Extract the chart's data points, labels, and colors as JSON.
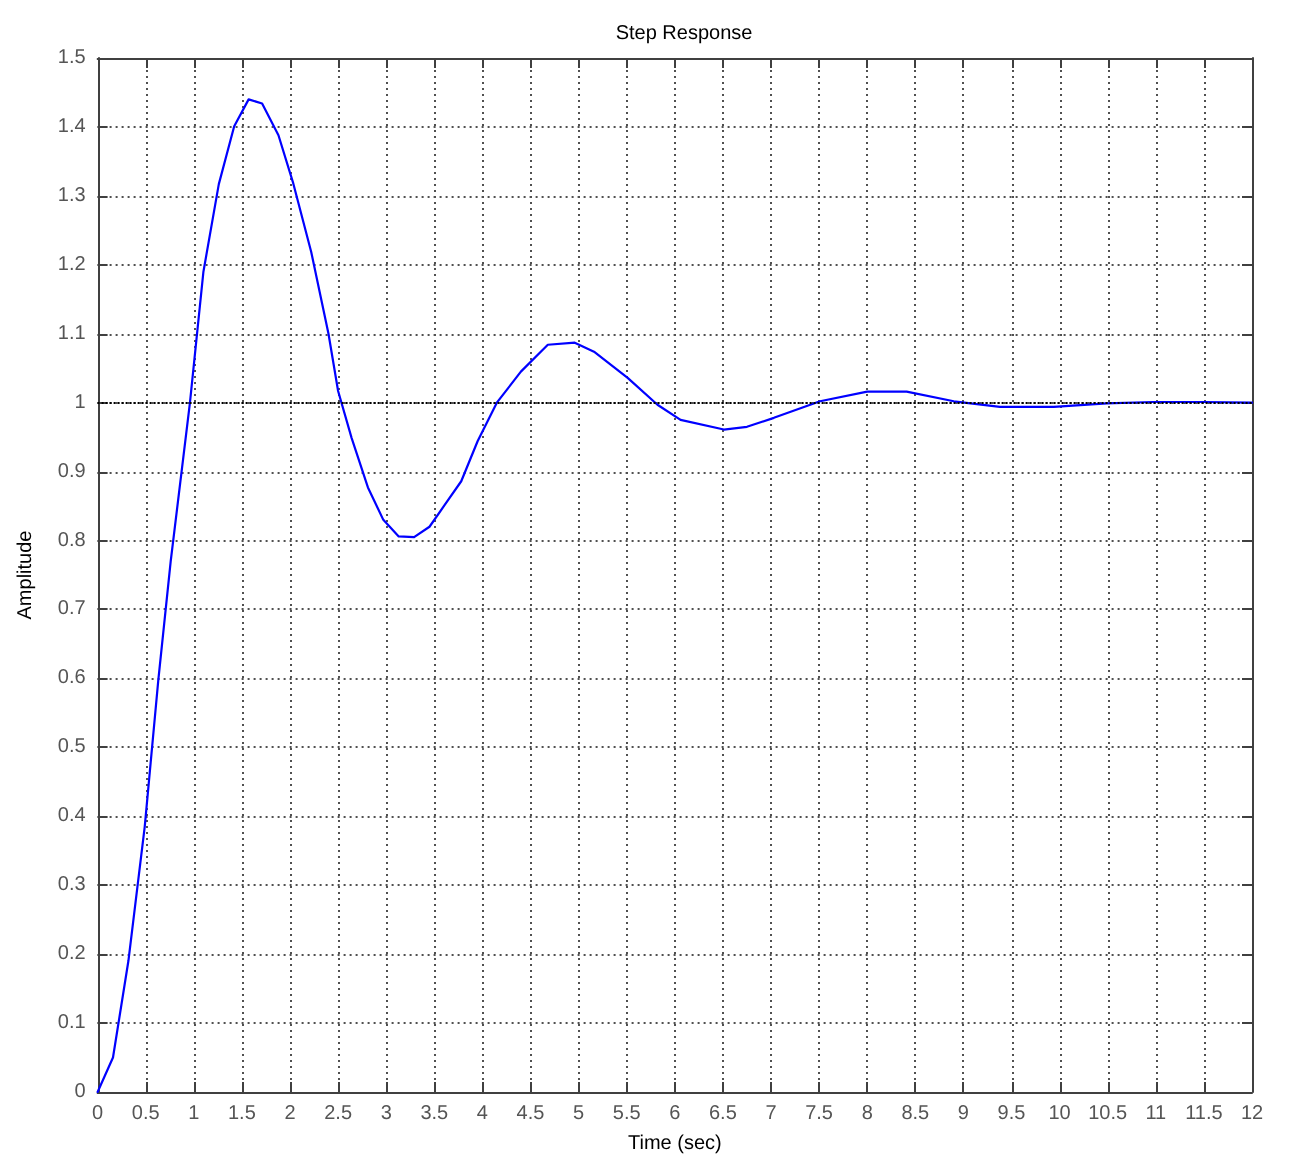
{
  "chart_data": {
    "type": "line",
    "title": "Step Response",
    "xlabel": "Time (sec)",
    "ylabel": "Amplitude",
    "x": [
      0,
      0.16,
      0.32,
      0.49,
      0.63,
      0.76,
      0.96,
      1.1,
      1.26,
      1.42,
      1.57,
      1.71,
      1.88,
      2.03,
      2.22,
      2.4,
      2.5,
      2.64,
      2.81,
      2.97,
      3.13,
      3.29,
      3.45,
      3.61,
      3.78,
      3.95,
      4.15,
      4.4,
      4.68,
      4.96,
      5.16,
      5.51,
      5.82,
      6.06,
      6.51,
      6.75,
      7.03,
      7.51,
      8,
      8.41,
      8.9,
      9.38,
      9.94,
      10.49,
      10.97,
      11.5,
      12
    ],
    "values": [
      0,
      0.05,
      0.19,
      0.385,
      0.596,
      0.77,
      1,
      1.19,
      1.317,
      1.401,
      1.44,
      1.434,
      1.388,
      1.32,
      1.219,
      1.1,
      1.017,
      0.949,
      0.877,
      0.83,
      0.806,
      0.805,
      0.82,
      0.852,
      0.886,
      0.944,
      1,
      1.045,
      1.084,
      1.087,
      1.074,
      1.036,
      0.997,
      0.975,
      0.961,
      0.965,
      0.978,
      1.002,
      1.016,
      1.016,
      1.002,
      0.994,
      0.994,
      0.999,
      1.001,
      1.001,
      1
    ],
    "color": "#0000ff",
    "marker": "none",
    "line_style": "solid",
    "xlim": [
      0,
      12
    ],
    "xticks": [
      0,
      0.5,
      1,
      1.5,
      2,
      2.5,
      3,
      3.5,
      4,
      4.5,
      5,
      5.5,
      6,
      6.5,
      7,
      7.5,
      8,
      8.5,
      9,
      9.5,
      10,
      10.5,
      11,
      11.5,
      12
    ],
    "ylim": [
      0,
      1.5
    ],
    "yticks": [
      0,
      0.1,
      0.2,
      0.3,
      0.4,
      0.5,
      0.6,
      0.7,
      0.8,
      0.9,
      1,
      1.1,
      1.2,
      1.3,
      1.4,
      1.5
    ],
    "grid": true,
    "ref_lines": [
      {
        "axis": "y",
        "value": 1,
        "color": "#000000",
        "line_style": "dotted"
      }
    ]
  }
}
